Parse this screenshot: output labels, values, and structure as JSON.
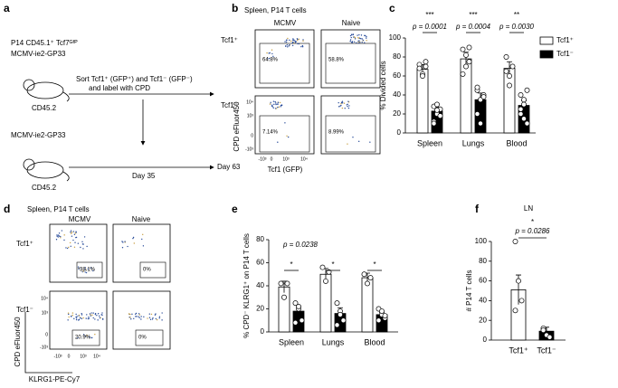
{
  "panel_labels": [
    "a",
    "b",
    "c",
    "d",
    "e",
    "f"
  ],
  "panel_a": {
    "donor_line1": "P14 CD45.1⁺ Tcf7ᴳᶠᴾ",
    "donor_line2": "MCMV-ie2-GP33",
    "donor_host": "CD45.2",
    "sort_line1": "Sort Tcf1⁺ (GFP⁺) and Tcf1⁻ (GFP⁻)",
    "sort_line2": "and label with CPD",
    "recipient_line": "MCMV-ie2-GP33",
    "recipient_host": "CD45.2",
    "day_start": "Day 35",
    "day_end": "Day 63"
  },
  "panel_b": {
    "title": "Spleen, P14 T cells",
    "columns": [
      "MCMV",
      "Naive"
    ],
    "rows": [
      "Tcf1⁺",
      "Tcf1⁻"
    ],
    "gates": [
      "64.8%",
      "58.8%",
      "7.14%",
      "8.99%"
    ],
    "y_label": "CPD eFluor450",
    "x_label": "Tcf1 (GFP)",
    "x_ticks": [
      "-10³",
      "0",
      "10³",
      "10⁴"
    ],
    "y_ticks": [
      "10⁴",
      "10³",
      "0",
      "-10³"
    ]
  },
  "panel_d": {
    "title": "Spleen, P14 T cells",
    "columns": [
      "MCMV",
      "Naive"
    ],
    "rows": [
      "Tcf1⁺",
      "Tcf1⁻"
    ],
    "gates": [
      "38.1%",
      "0%",
      "20.9%",
      "0%"
    ],
    "y_label": "CPD eFluor450",
    "x_label": "KLRG1-PE-Cy7",
    "x_ticks": [
      "-10³",
      "0",
      "10³",
      "10⁴"
    ],
    "y_ticks": [
      "10⁴",
      "10³",
      "0",
      "-10³"
    ]
  },
  "chart_data": [
    {
      "type": "bar",
      "y_label": "% Divided cells",
      "categories": [
        "Spleen",
        "Lungs",
        "Blood"
      ],
      "series": [
        {
          "name": "Tcf1⁺",
          "color": "#ffffff",
          "values": [
            67,
            78,
            68
          ],
          "errors": [
            5,
            7,
            7
          ],
          "points": [
            [
              72,
              62,
              70,
              68,
              60,
              75
            ],
            [
              88,
              70,
              75,
              62,
              82,
              90
            ],
            [
              80,
              60,
              70,
              65,
              50
            ]
          ]
        },
        {
          "name": "Tcf1⁻",
          "color": "#000000",
          "values": [
            23,
            35,
            29
          ],
          "errors": [
            4,
            7,
            5
          ],
          "points": [
            [
              28,
              20,
              25,
              12,
              30,
              18,
              10,
              24
            ],
            [
              45,
              35,
              40,
              20,
              10,
              38,
              48
            ],
            [
              40,
              30,
              10,
              20,
              35,
              45,
              25,
              15
            ]
          ]
        }
      ],
      "ylim": [
        0,
        100
      ],
      "yticks": [
        0,
        20,
        40,
        60,
        80,
        100
      ],
      "stars": [
        "***",
        "***",
        "**"
      ],
      "p_labels": [
        "p = 0.0001",
        "p = 0.0004",
        "p = 0.0030"
      ],
      "legend": "right"
    },
    {
      "type": "bar",
      "y_label": "% CPD⁻ KLRG1⁺ on P14 T cells",
      "categories": [
        "Spleen",
        "Lungs",
        "Blood"
      ],
      "series": [
        {
          "name": "Tcf1⁺",
          "color": "#ffffff",
          "values": [
            39,
            50,
            47
          ],
          "errors": [
            5,
            5,
            4
          ],
          "points": [
            [
              42,
              30,
              42
            ],
            [
              56,
              44,
              52
            ],
            [
              50,
              42,
              47
            ]
          ]
        },
        {
          "name": "Tcf1⁻",
          "color": "#000000",
          "values": [
            18,
            16,
            15
          ],
          "errors": [
            4,
            5,
            2
          ],
          "points": [
            [
              25,
              20,
              10,
              8,
              22
            ],
            [
              25,
              18,
              10,
              6,
              15
            ],
            [
              20,
              15,
              12,
              10,
              18,
              14
            ]
          ]
        }
      ],
      "ylim": [
        0,
        80
      ],
      "yticks": [
        0,
        20,
        40,
        60,
        80
      ],
      "stars": [
        "*",
        "*",
        "*"
      ],
      "p_labels": [
        "p = 0.0238"
      ]
    },
    {
      "type": "bar",
      "title": "LN",
      "y_label": "# P14 T cells",
      "categories": [
        "Tcf1⁺",
        "Tcf1⁻"
      ],
      "values": [
        51,
        9
      ],
      "errors": [
        15,
        4
      ],
      "colors": [
        "#ffffff",
        "#000000"
      ],
      "points": [
        [
          100,
          60,
          40,
          30
        ],
        [
          12,
          5,
          3,
          10
        ]
      ],
      "ylim": [
        0,
        100
      ],
      "yticks": [
        0,
        20,
        40,
        60,
        80,
        100
      ],
      "stars": [
        "*"
      ],
      "p_labels": [
        "p = 0.0286"
      ]
    }
  ]
}
